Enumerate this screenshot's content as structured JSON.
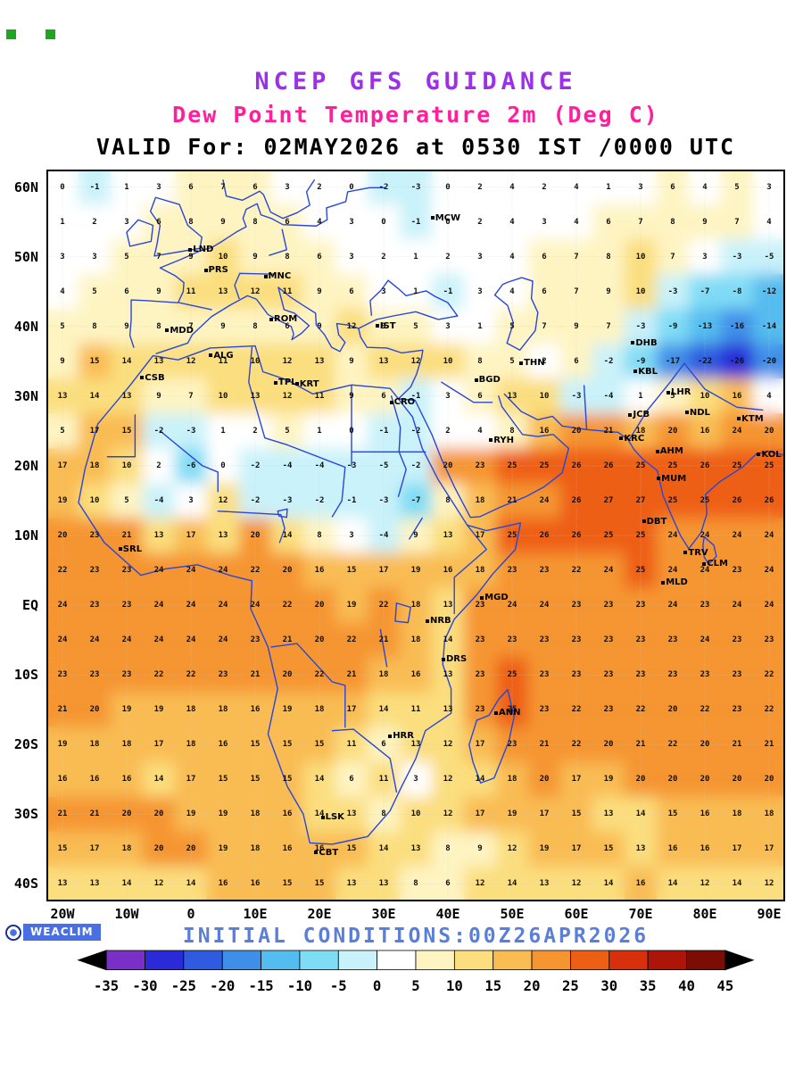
{
  "header": {
    "title1": "NCEP GFS GUIDANCE",
    "title2": "Dew Point Temperature 2m (Deg C)",
    "valid_line": "VALID For: 02MAY2026 at 0530 IST /0000 UTC"
  },
  "watermark": {
    "logo_text": "WEACLIM"
  },
  "footer": {
    "initial_conditions": "INITIAL CONDITIONS:00Z26APR2026"
  },
  "colors": {
    "title1": "#9b30e8",
    "title2": "#ff1e9c",
    "valid": "#000000",
    "initial": "#5b7fd9",
    "coast": "#2946d8",
    "logo_bg": "#4a6fe3",
    "logo_ring": "#16309c",
    "number": "#101010",
    "grid_dots": "#c9c9c9",
    "mark": "#1fa51f"
  },
  "chart_data": {
    "type": "heatmap",
    "title": "NCEP GFS GUIDANCE",
    "subtitle": "Dew Point Temperature 2m (Deg C)",
    "valid": "VALID For: 02MAY2026 at 0530 IST /0000 UTC",
    "initial_conditions": "INITIAL CONDITIONS:00Z26APR2026",
    "units": "Deg C",
    "lon_range": [
      -22.5,
      92.5
    ],
    "lat_range": [
      -42.5,
      62.5
    ],
    "grid_on": true,
    "x_ticks": [
      {
        "label": "20W",
        "lon": -20
      },
      {
        "label": "10W",
        "lon": -10
      },
      {
        "label": "0",
        "lon": 0
      },
      {
        "label": "10E",
        "lon": 10
      },
      {
        "label": "20E",
        "lon": 20
      },
      {
        "label": "30E",
        "lon": 30
      },
      {
        "label": "40E",
        "lon": 40
      },
      {
        "label": "50E",
        "lon": 50
      },
      {
        "label": "60E",
        "lon": 60
      },
      {
        "label": "70E",
        "lon": 70
      },
      {
        "label": "80E",
        "lon": 80
      },
      {
        "label": "90E",
        "lon": 90
      }
    ],
    "y_ticks": [
      {
        "label": "60N",
        "lat": 60
      },
      {
        "label": "50N",
        "lat": 50
      },
      {
        "label": "40N",
        "lat": 40
      },
      {
        "label": "30N",
        "lat": 30
      },
      {
        "label": "20N",
        "lat": 20
      },
      {
        "label": "10N",
        "lat": 10
      },
      {
        "label": "EQ",
        "lat": 0
      },
      {
        "label": "10S",
        "lat": -10
      },
      {
        "label": "20S",
        "lat": -20
      },
      {
        "label": "30S",
        "lat": -30
      },
      {
        "label": "40S",
        "lat": -40
      }
    ],
    "grid": {
      "lons": [
        -20,
        -15,
        -10,
        -5,
        0,
        5,
        10,
        15,
        20,
        25,
        30,
        35,
        40,
        45,
        50,
        55,
        60,
        65,
        70,
        75,
        80,
        85,
        90
      ],
      "lats": [
        60,
        55,
        50,
        45,
        40,
        35,
        30,
        25,
        20,
        15,
        10,
        5,
        0,
        -5,
        -10,
        -15,
        -20,
        -25,
        -30,
        -35,
        -40
      ],
      "values": [
        [
          0,
          -1,
          1,
          3,
          6,
          7,
          6,
          3,
          2,
          0,
          -2,
          -3,
          0,
          2,
          4,
          2,
          4,
          1,
          3,
          6,
          4,
          5,
          3
        ],
        [
          1,
          2,
          3,
          6,
          8,
          9,
          8,
          6,
          4,
          3,
          0,
          -1,
          0,
          2,
          4,
          3,
          4,
          6,
          7,
          8,
          9,
          7,
          4
        ],
        [
          3,
          3,
          5,
          7,
          9,
          10,
          9,
          8,
          6,
          3,
          2,
          1,
          2,
          3,
          4,
          6,
          7,
          8,
          10,
          7,
          3,
          -3,
          -5
        ],
        [
          4,
          5,
          6,
          9,
          11,
          13,
          12,
          11,
          9,
          6,
          3,
          1,
          -1,
          3,
          4,
          6,
          7,
          9,
          10,
          -3,
          -7,
          -8,
          -12
        ],
        [
          5,
          8,
          9,
          8,
          7,
          9,
          8,
          6,
          9,
          12,
          9,
          5,
          3,
          1,
          5,
          7,
          9,
          7,
          -3,
          -9,
          -13,
          -16,
          -14
        ],
        [
          9,
          15,
          14,
          13,
          12,
          11,
          10,
          12,
          13,
          9,
          13,
          12,
          10,
          8,
          5,
          2,
          6,
          -2,
          -9,
          -17,
          -22,
          -26,
          -20
        ],
        [
          13,
          14,
          13,
          9,
          7,
          10,
          13,
          12,
          11,
          9,
          6,
          -1,
          3,
          6,
          13,
          10,
          -3,
          -4,
          1,
          5,
          10,
          16,
          4
        ],
        [
          5,
          17,
          15,
          -2,
          -3,
          1,
          2,
          5,
          1,
          0,
          -1,
          -2,
          2,
          4,
          8,
          16,
          20,
          21,
          18,
          20,
          16,
          24,
          20
        ],
        [
          17,
          18,
          10,
          2,
          -6,
          0,
          -2,
          -4,
          -4,
          -3,
          -5,
          -2,
          20,
          23,
          25,
          25,
          26,
          26,
          25,
          25,
          26,
          25,
          25
        ],
        [
          19,
          10,
          5,
          -4,
          3,
          12,
          -2,
          -3,
          -2,
          -1,
          -3,
          -7,
          8,
          18,
          21,
          24,
          26,
          27,
          27,
          25,
          25,
          26,
          26
        ],
        [
          20,
          23,
          21,
          13,
          17,
          13,
          20,
          14,
          8,
          3,
          -4,
          9,
          13,
          17,
          25,
          26,
          26,
          25,
          25,
          24,
          24,
          24,
          24
        ],
        [
          22,
          23,
          23,
          24,
          24,
          24,
          22,
          20,
          16,
          15,
          17,
          19,
          16,
          18,
          23,
          23,
          22,
          24,
          25,
          24,
          24,
          23,
          24
        ],
        [
          24,
          23,
          23,
          24,
          24,
          24,
          24,
          22,
          20,
          19,
          22,
          18,
          13,
          23,
          24,
          24,
          23,
          23,
          23,
          24,
          23,
          24,
          24
        ],
        [
          24,
          24,
          24,
          24,
          24,
          24,
          23,
          21,
          20,
          22,
          21,
          18,
          14,
          23,
          23,
          23,
          23,
          23,
          23,
          23,
          24,
          23,
          23
        ],
        [
          23,
          23,
          23,
          22,
          22,
          23,
          21,
          20,
          22,
          21,
          18,
          16,
          13,
          23,
          25,
          23,
          23,
          23,
          23,
          23,
          23,
          23,
          22
        ],
        [
          21,
          20,
          19,
          19,
          18,
          18,
          16,
          19,
          18,
          17,
          14,
          11,
          13,
          23,
          25,
          23,
          22,
          23,
          22,
          20,
          22,
          23,
          22
        ],
        [
          19,
          18,
          18,
          17,
          18,
          16,
          15,
          15,
          15,
          11,
          6,
          13,
          12,
          17,
          23,
          21,
          22,
          20,
          21,
          22,
          20,
          21,
          21
        ],
        [
          16,
          16,
          16,
          14,
          17,
          15,
          15,
          15,
          14,
          6,
          11,
          3,
          12,
          14,
          18,
          20,
          17,
          19,
          20,
          20,
          20,
          20,
          20
        ],
        [
          21,
          21,
          20,
          20,
          19,
          19,
          18,
          16,
          14,
          13,
          8,
          10,
          12,
          17,
          19,
          17,
          15,
          13,
          14,
          15,
          16,
          18,
          18
        ],
        [
          15,
          17,
          18,
          20,
          20,
          19,
          18,
          16,
          16,
          15,
          14,
          13,
          8,
          9,
          12,
          19,
          17,
          15,
          13,
          16,
          16,
          17,
          17
        ],
        [
          13,
          13,
          14,
          12,
          14,
          16,
          16,
          15,
          15,
          13,
          13,
          8,
          6,
          12,
          14,
          13,
          12,
          14,
          16,
          14,
          12,
          14,
          12
        ]
      ]
    },
    "colorbar": {
      "position": "bottom",
      "tick_values": [
        -35,
        -30,
        -25,
        -20,
        -15,
        -10,
        -5,
        0,
        5,
        10,
        15,
        20,
        25,
        30,
        35,
        40,
        45
      ],
      "tick_labels": [
        "-35",
        "-30",
        "-25",
        "-20",
        "-15",
        "-10",
        "-5",
        "0",
        "5",
        "10",
        "15",
        "20",
        "25",
        "30",
        "35",
        "40",
        "45"
      ],
      "colors": [
        "#7a2fc6",
        "#2a2ad8",
        "#2e5be0",
        "#3f8ee8",
        "#55bcef",
        "#7fdcf5",
        "#c9f2fa",
        "#ffffff",
        "#fef4c2",
        "#fbde7e",
        "#f9bc52",
        "#f59530",
        "#ee5f16",
        "#d8300d",
        "#ac1507",
        "#7c0c04"
      ],
      "arrow_left": "#000000",
      "arrow_right": "#000000"
    },
    "cities": [
      {
        "label": "MCW",
        "lon": 37.6,
        "lat": 56.5
      },
      {
        "label": "LND",
        "lon": -0.1,
        "lat": 52.0
      },
      {
        "label": "PRS",
        "lon": 2.3,
        "lat": 49.0
      },
      {
        "label": "MNC",
        "lon": 11.6,
        "lat": 48.1
      },
      {
        "label": "ROM",
        "lon": 12.5,
        "lat": 42.0
      },
      {
        "label": "MDD",
        "lon": -3.7,
        "lat": 40.4
      },
      {
        "label": "IST",
        "lon": 29.0,
        "lat": 41.0
      },
      {
        "label": "ALG",
        "lon": 3.1,
        "lat": 36.8
      },
      {
        "label": "CSB",
        "lon": -7.6,
        "lat": 33.6
      },
      {
        "label": "TPL",
        "lon": 13.2,
        "lat": 32.9
      },
      {
        "label": "KRT",
        "lon": 16.5,
        "lat": 32.7
      },
      {
        "label": "CRO",
        "lon": 31.2,
        "lat": 30.1
      },
      {
        "label": "BGD",
        "lon": 44.4,
        "lat": 33.3
      },
      {
        "label": "THN",
        "lon": 51.4,
        "lat": 35.7
      },
      {
        "label": "DHB",
        "lon": 68.8,
        "lat": 38.6
      },
      {
        "label": "KBL",
        "lon": 69.2,
        "lat": 34.5
      },
      {
        "label": "LHR",
        "lon": 74.3,
        "lat": 31.5
      },
      {
        "label": "JCB",
        "lon": 68.4,
        "lat": 28.3
      },
      {
        "label": "NDL",
        "lon": 77.2,
        "lat": 28.6
      },
      {
        "label": "KTM",
        "lon": 85.3,
        "lat": 27.7
      },
      {
        "label": "RYH",
        "lon": 46.7,
        "lat": 24.6
      },
      {
        "label": "KRC",
        "lon": 67.0,
        "lat": 24.9
      },
      {
        "label": "AHM",
        "lon": 72.6,
        "lat": 23.0
      },
      {
        "label": "KOL",
        "lon": 88.4,
        "lat": 22.6
      },
      {
        "label": "MUM",
        "lon": 72.8,
        "lat": 19.1
      },
      {
        "label": "DBT",
        "lon": 70.5,
        "lat": 13.0
      },
      {
        "label": "TRV",
        "lon": 77.0,
        "lat": 8.5
      },
      {
        "label": "CLM",
        "lon": 79.9,
        "lat": 6.9
      },
      {
        "label": "MLD",
        "lon": 73.5,
        "lat": 4.2
      },
      {
        "label": "SRL",
        "lon": -11.0,
        "lat": 9.0
      },
      {
        "label": "MGD",
        "lon": 45.3,
        "lat": 2.0
      },
      {
        "label": "NRB",
        "lon": 36.8,
        "lat": -1.3
      },
      {
        "label": "DRS",
        "lon": 39.3,
        "lat": -6.8
      },
      {
        "label": "ANN",
        "lon": 47.5,
        "lat": -14.5
      },
      {
        "label": "HRR",
        "lon": 31.0,
        "lat": -17.8
      },
      {
        "label": "LSK",
        "lon": 20.5,
        "lat": -29.5
      },
      {
        "label": "CBT",
        "lon": 19.5,
        "lat": -34.5
      }
    ]
  }
}
